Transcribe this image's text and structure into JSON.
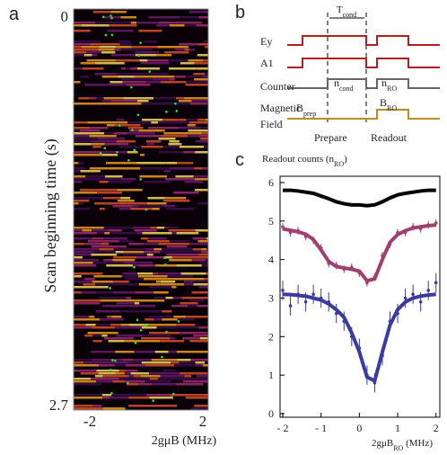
{
  "panel_labels": [
    "a",
    "b",
    "c"
  ],
  "panel_a": {
    "ylabel": "Scan beginning time (s)",
    "xlabel": "2gμB (MHz)",
    "yticks": [
      "0",
      "2.7"
    ],
    "xticks": [
      "-2",
      "2"
    ]
  },
  "panel_b": {
    "t_cond": {
      "base": "T",
      "sub": "cond"
    },
    "ey": "Ey",
    "a1": "A1",
    "counter": "Counter",
    "n_cond": {
      "base": "n",
      "sub": "cond"
    },
    "n_ro": {
      "base": "n",
      "sub": "RO"
    },
    "magnetic": "Magnetic",
    "field": "Field",
    "b_prep": {
      "base": "B",
      "sub": "prep"
    },
    "b_ro": {
      "base": "B",
      "sub": "RO"
    },
    "prepare": "Prepare",
    "readout": "Readout"
  },
  "chart_data": {
    "type": "line",
    "ylabel": {
      "base": "Readout counts (n",
      "sub": "RO",
      "end": ")"
    },
    "xlabel": {
      "base": "2gμB",
      "sub": "RO",
      "end": " (MHz)"
    },
    "xlim": [
      -2,
      2.1
    ],
    "ylim": [
      0,
      6
    ],
    "xticks": [
      {
        "value": -2,
        "label": "- 2"
      },
      {
        "value": -1,
        "label": "- 1"
      },
      0,
      1,
      2
    ],
    "yticks": [
      0,
      1,
      2,
      3,
      4,
      5,
      6
    ],
    "x": [
      -2,
      -1.8,
      -1.6,
      -1.4,
      -1.2,
      -1,
      -0.8,
      -0.6,
      -0.4,
      -0.2,
      0,
      0.2,
      0.4,
      0.6,
      0.8,
      1,
      1.2,
      1.4,
      1.6,
      1.8,
      2
    ],
    "series": [
      {
        "style": "line",
        "color": "#000000",
        "values": [
          5.8,
          5.8,
          5.78,
          5.75,
          5.72,
          5.65,
          5.58,
          5.5,
          5.45,
          5.42,
          5.42,
          5.4,
          5.42,
          5.5,
          5.6,
          5.68,
          5.72,
          5.75,
          5.78,
          5.8,
          5.8
        ]
      },
      {
        "style": "line",
        "color": "#a0406e",
        "values": [
          4.8,
          4.76,
          4.72,
          4.66,
          4.52,
          4.25,
          3.95,
          3.82,
          3.78,
          3.75,
          3.7,
          3.45,
          3.5,
          4.0,
          4.45,
          4.65,
          4.75,
          4.82,
          4.85,
          4.88,
          4.9
        ]
      },
      {
        "style": "points",
        "color": "#a0406e",
        "values": [
          4.85,
          4.7,
          4.75,
          4.6,
          4.5,
          4.3,
          3.9,
          3.85,
          3.75,
          3.8,
          3.65,
          3.4,
          3.55,
          4.1,
          4.4,
          4.7,
          4.7,
          4.85,
          4.8,
          4.9,
          4.95
        ],
        "errors": [
          0.1,
          0.1,
          0.1,
          0.1,
          0.1,
          0.1,
          0.1,
          0.1,
          0.1,
          0.1,
          0.1,
          0.1,
          0.1,
          0.1,
          0.1,
          0.1,
          0.1,
          0.1,
          0.1,
          0.1,
          0.1
        ]
      },
      {
        "style": "line",
        "color": "#3a3aa0",
        "values": [
          3.1,
          3.09,
          3.07,
          3.05,
          3.0,
          2.95,
          2.85,
          2.7,
          2.5,
          2.1,
          1.6,
          0.95,
          0.85,
          1.6,
          2.3,
          2.7,
          2.9,
          3.0,
          3.05,
          3.08,
          3.1
        ]
      },
      {
        "style": "points",
        "color": "#3a3aa0",
        "values": [
          3.2,
          2.8,
          3.1,
          2.9,
          3.1,
          3.0,
          2.9,
          2.6,
          2.4,
          2.0,
          1.7,
          1.0,
          0.8,
          1.5,
          2.4,
          2.6,
          3.0,
          3.1,
          2.9,
          3.2,
          3.4
        ],
        "errors": [
          0.25,
          0.25,
          0.25,
          0.25,
          0.25,
          0.25,
          0.25,
          0.25,
          0.25,
          0.25,
          0.25,
          0.25,
          0.25,
          0.25,
          0.25,
          0.25,
          0.25,
          0.25,
          0.25,
          0.25,
          0.25
        ]
      }
    ]
  }
}
